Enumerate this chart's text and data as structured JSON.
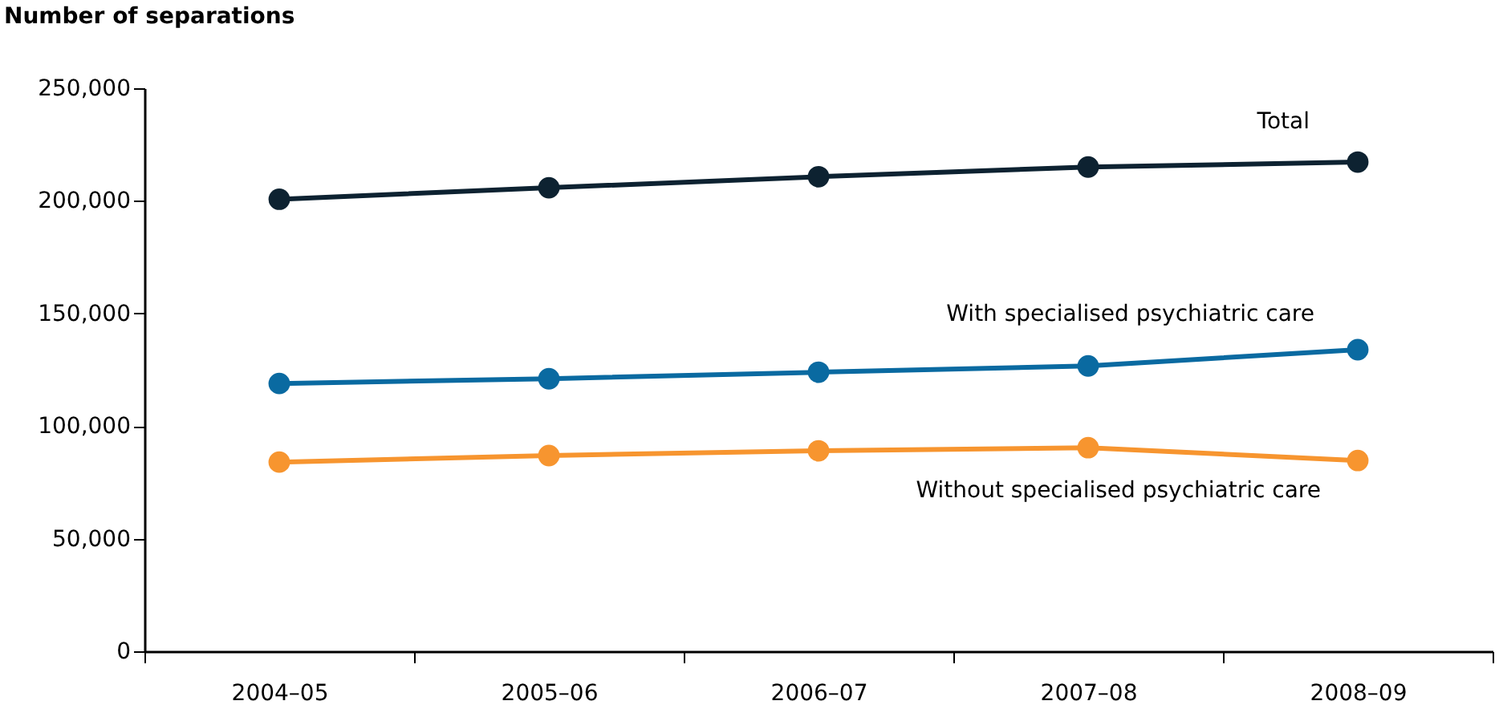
{
  "chart_data": {
    "type": "line",
    "ylabel": "Number of separations",
    "categories": [
      "2004–05",
      "2005–06",
      "2006–07",
      "2007–08",
      "2008–09"
    ],
    "series": [
      {
        "name": "Total",
        "color": "#0d2231",
        "values": [
          200700,
          205800,
          210700,
          215000,
          217200
        ]
      },
      {
        "name": "With specialised psychiatric care",
        "color": "#0a6aa1",
        "values": [
          118900,
          121000,
          123900,
          126700,
          133900
        ]
      },
      {
        "name": "Without specialised psychiatric care",
        "color": "#f7952f",
        "values": [
          84000,
          86900,
          89000,
          90400,
          84700
        ]
      }
    ],
    "ylim": [
      0,
      250000
    ],
    "yticks": [
      0,
      {
        "value": 50000,
        "label": "50,000"
      },
      {
        "value": 100000,
        "label": "100,000"
      },
      {
        "value": 150000,
        "label": "150,000"
      },
      {
        "value": 200000,
        "label": "200,000"
      },
      {
        "value": 250000,
        "label": "250,000"
      }
    ],
    "grid": false,
    "legend": false,
    "marker": "circle",
    "line_style": "solid"
  }
}
